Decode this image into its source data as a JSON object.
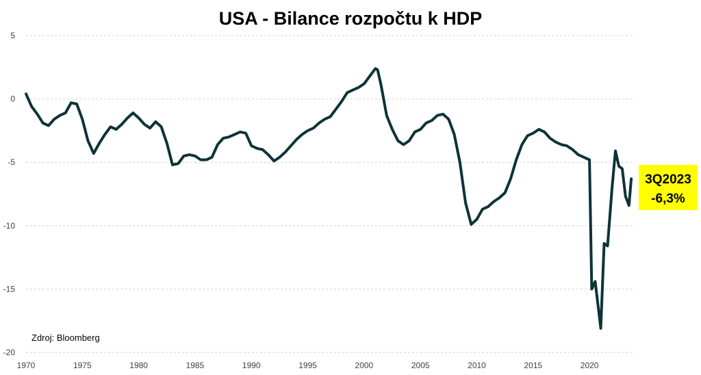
{
  "chart_data": {
    "type": "line",
    "title": "USA - Bilance rozpočtu k HDP",
    "xlabel": "",
    "ylabel": "",
    "xlim": [
      1970,
      2024
    ],
    "ylim": [
      -20,
      5
    ],
    "grid": true,
    "legend": "none",
    "line_color": "#0d3338",
    "x_ticks": [
      1970,
      1975,
      1980,
      1985,
      1990,
      1995,
      2000,
      2005,
      2010,
      2015,
      2020
    ],
    "y_ticks": [
      5,
      0,
      -5,
      -10,
      -15,
      -20
    ],
    "series": [
      {
        "values": [
          [
            1970.0,
            0.4
          ],
          [
            1970.5,
            -0.6
          ],
          [
            1971.0,
            -1.2
          ],
          [
            1971.5,
            -1.9
          ],
          [
            1972.0,
            -2.1
          ],
          [
            1972.5,
            -1.6
          ],
          [
            1973.0,
            -1.3
          ],
          [
            1973.5,
            -1.1
          ],
          [
            1974.0,
            -0.3
          ],
          [
            1974.5,
            -0.4
          ],
          [
            1975.0,
            -1.6
          ],
          [
            1975.5,
            -3.3
          ],
          [
            1976.0,
            -4.3
          ],
          [
            1976.5,
            -3.5
          ],
          [
            1977.0,
            -2.8
          ],
          [
            1977.5,
            -2.2
          ],
          [
            1978.0,
            -2.4
          ],
          [
            1978.5,
            -2.0
          ],
          [
            1979.0,
            -1.5
          ],
          [
            1979.5,
            -1.1
          ],
          [
            1980.0,
            -1.5
          ],
          [
            1980.5,
            -2.0
          ],
          [
            1981.0,
            -2.3
          ],
          [
            1981.5,
            -1.8
          ],
          [
            1982.0,
            -2.2
          ],
          [
            1982.5,
            -3.5
          ],
          [
            1983.0,
            -5.2
          ],
          [
            1983.5,
            -5.1
          ],
          [
            1984.0,
            -4.5
          ],
          [
            1984.5,
            -4.4
          ],
          [
            1985.0,
            -4.5
          ],
          [
            1985.5,
            -4.8
          ],
          [
            1986.0,
            -4.8
          ],
          [
            1986.5,
            -4.6
          ],
          [
            1987.0,
            -3.6
          ],
          [
            1987.5,
            -3.1
          ],
          [
            1988.0,
            -3.0
          ],
          [
            1988.5,
            -2.8
          ],
          [
            1989.0,
            -2.6
          ],
          [
            1989.5,
            -2.7
          ],
          [
            1990.0,
            -3.7
          ],
          [
            1990.5,
            -3.9
          ],
          [
            1991.0,
            -4.0
          ],
          [
            1991.5,
            -4.4
          ],
          [
            1992.0,
            -4.9
          ],
          [
            1992.5,
            -4.6
          ],
          [
            1993.0,
            -4.2
          ],
          [
            1993.5,
            -3.7
          ],
          [
            1994.0,
            -3.2
          ],
          [
            1994.5,
            -2.8
          ],
          [
            1995.0,
            -2.5
          ],
          [
            1995.5,
            -2.3
          ],
          [
            1996.0,
            -1.9
          ],
          [
            1996.5,
            -1.6
          ],
          [
            1997.0,
            -1.4
          ],
          [
            1997.5,
            -0.8
          ],
          [
            1998.0,
            -0.2
          ],
          [
            1998.5,
            0.5
          ],
          [
            1999.0,
            0.7
          ],
          [
            1999.5,
            0.9
          ],
          [
            2000.0,
            1.2
          ],
          [
            2000.5,
            1.8
          ],
          [
            2001.0,
            2.4
          ],
          [
            2001.2,
            2.3
          ],
          [
            2001.5,
            1.1
          ],
          [
            2002.0,
            -1.3
          ],
          [
            2002.5,
            -2.4
          ],
          [
            2003.0,
            -3.3
          ],
          [
            2003.5,
            -3.6
          ],
          [
            2004.0,
            -3.3
          ],
          [
            2004.5,
            -2.6
          ],
          [
            2005.0,
            -2.4
          ],
          [
            2005.5,
            -1.9
          ],
          [
            2006.0,
            -1.7
          ],
          [
            2006.5,
            -1.3
          ],
          [
            2007.0,
            -1.2
          ],
          [
            2007.5,
            -1.6
          ],
          [
            2008.0,
            -2.8
          ],
          [
            2008.5,
            -5.0
          ],
          [
            2009.0,
            -8.2
          ],
          [
            2009.5,
            -9.9
          ],
          [
            2010.0,
            -9.5
          ],
          [
            2010.5,
            -8.7
          ],
          [
            2011.0,
            -8.5
          ],
          [
            2011.5,
            -8.1
          ],
          [
            2012.0,
            -7.8
          ],
          [
            2012.5,
            -7.4
          ],
          [
            2013.0,
            -6.3
          ],
          [
            2013.5,
            -4.8
          ],
          [
            2014.0,
            -3.6
          ],
          [
            2014.5,
            -2.9
          ],
          [
            2015.0,
            -2.7
          ],
          [
            2015.5,
            -2.4
          ],
          [
            2016.0,
            -2.6
          ],
          [
            2016.5,
            -3.1
          ],
          [
            2017.0,
            -3.4
          ],
          [
            2017.5,
            -3.6
          ],
          [
            2018.0,
            -3.7
          ],
          [
            2018.5,
            -4.0
          ],
          [
            2019.0,
            -4.4
          ],
          [
            2019.5,
            -4.6
          ],
          [
            2020.0,
            -4.8
          ],
          [
            2020.2,
            -15.0
          ],
          [
            2020.5,
            -14.4
          ],
          [
            2021.0,
            -18.1
          ],
          [
            2021.3,
            -11.4
          ],
          [
            2021.6,
            -11.6
          ],
          [
            2022.0,
            -7.0
          ],
          [
            2022.3,
            -4.1
          ],
          [
            2022.6,
            -5.3
          ],
          [
            2022.9,
            -5.5
          ],
          [
            2023.2,
            -7.7
          ],
          [
            2023.5,
            -8.4
          ],
          [
            2023.7,
            -6.3
          ]
        ]
      }
    ],
    "annotations": {
      "callout_line1": "3Q2023",
      "callout_line2": "-6,3%",
      "callout_color": "#ffff00",
      "source": "Zdroj: Bloomberg"
    }
  }
}
